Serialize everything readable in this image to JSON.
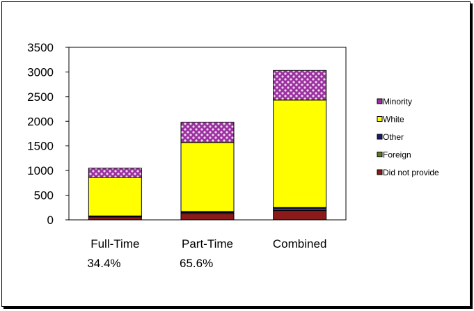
{
  "chart_data": {
    "type": "bar",
    "stacked": true,
    "categories": [
      "Full-Time",
      "Part-Time",
      "Combined"
    ],
    "category_sublabels": [
      "34.4%",
      "65.6%",
      ""
    ],
    "ylim": [
      0,
      3500
    ],
    "yticks": [
      0,
      500,
      1000,
      1500,
      2000,
      2500,
      3000,
      3500
    ],
    "series": [
      {
        "name": "Did not provide",
        "values": [
          60,
          130,
          190
        ],
        "color": "#8b1a1a"
      },
      {
        "name": "Foreign",
        "values": [
          10,
          20,
          30
        ],
        "color": "#5a7a2a"
      },
      {
        "name": "Other",
        "values": [
          10,
          20,
          30
        ],
        "color": "#1a1a6e"
      },
      {
        "name": "White",
        "values": [
          780,
          1400,
          2180
        ],
        "color": "#ffff00"
      },
      {
        "name": "Minority",
        "values": [
          190,
          410,
          600
        ],
        "color": "#9b30a0",
        "pattern": "dots"
      }
    ],
    "legend_order": [
      "Minority",
      "White",
      "Other",
      "Foreign",
      "Did not provide"
    ],
    "legend_position": "right",
    "grid": false
  }
}
